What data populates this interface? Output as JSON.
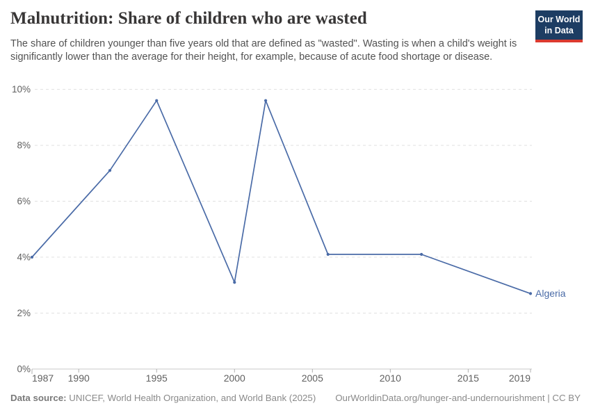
{
  "header": {
    "title": "Malnutrition: Share of children who are wasted",
    "subtitle": "The share of children younger than five years old that are defined as \"wasted\". Wasting is when a child's weight is significantly lower than the average for their height, for example, because of acute food shortage or disease."
  },
  "branding": {
    "logo_line1": "Our World",
    "logo_line2": "in Data",
    "logo_bg": "#1d3d63",
    "logo_bar": "#dc3a2f"
  },
  "chart_data": {
    "type": "line",
    "title": "Malnutrition: Share of children who are wasted",
    "xlabel": "",
    "ylabel": "",
    "x_axis": {
      "min": 1987,
      "max": 2019,
      "ticks": [
        1987,
        1990,
        1995,
        2000,
        2005,
        2010,
        2015,
        2019
      ]
    },
    "y_axis": {
      "min": 0,
      "max": 10,
      "ticks": [
        0,
        2,
        4,
        6,
        8,
        10
      ],
      "tick_suffix": "%"
    },
    "grid": "horizontal-dashed",
    "legend_position": "end-of-line",
    "series": [
      {
        "name": "Algeria",
        "color": "#4a6ba7",
        "x": [
          1987,
          1992,
          1995,
          2000,
          2002,
          2006,
          2012,
          2019
        ],
        "y": [
          4.0,
          7.1,
          9.6,
          3.1,
          9.6,
          4.1,
          4.1,
          2.7
        ]
      }
    ],
    "colors": {
      "line": "#4a6ba7",
      "grid": "#e0e0e0",
      "axis": "#c8c8c8",
      "tick": "#b0b0b0",
      "tick_label": "#606060"
    }
  },
  "footer": {
    "source_label": "Data source:",
    "source_text": " UNICEF, World Health Organization, and World Bank (2025)",
    "license_text": "OurWorldinData.org/hunger-and-undernourishment | CC BY"
  }
}
